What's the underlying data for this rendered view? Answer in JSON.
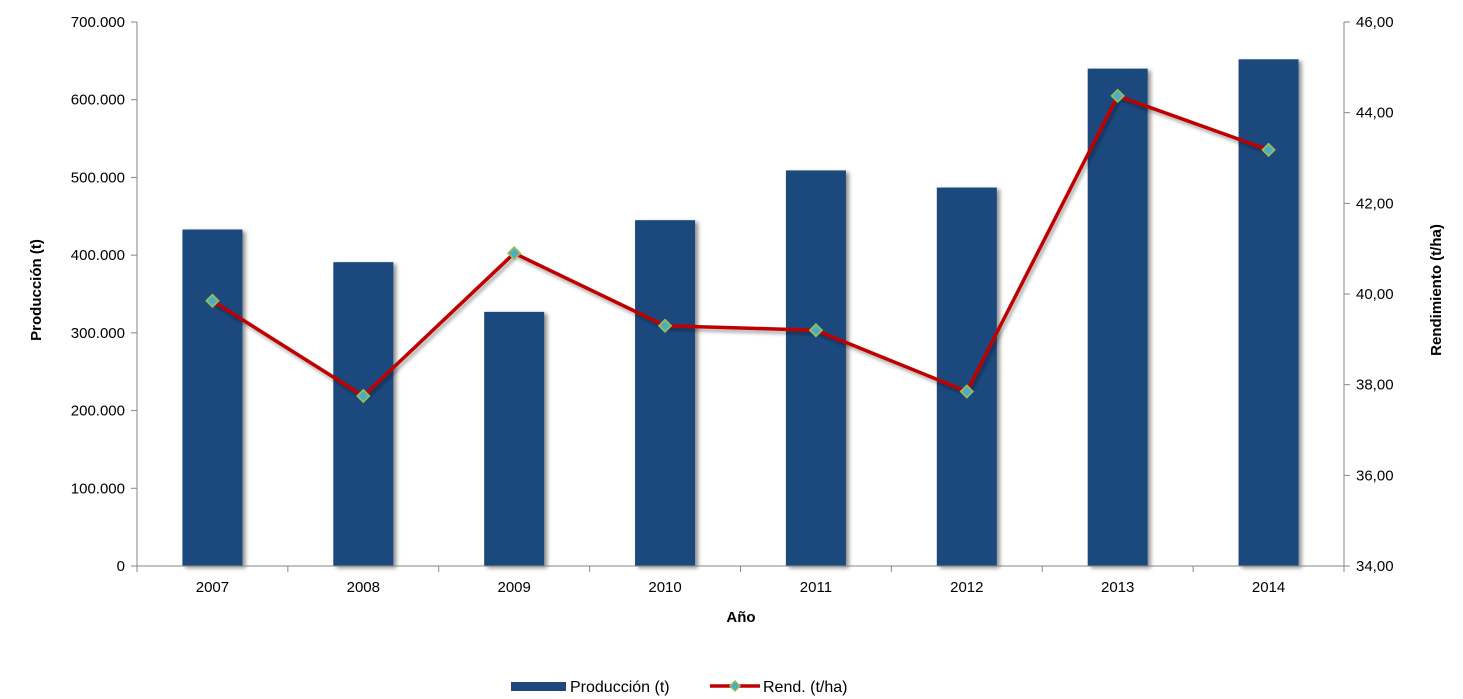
{
  "chart_data": {
    "type": "bar",
    "categories": [
      "2007",
      "2008",
      "2009",
      "2010",
      "2011",
      "2012",
      "2013",
      "2014"
    ],
    "series": [
      {
        "name": "Producción (t)",
        "type": "bar",
        "axis": "left",
        "color": "#1F497D",
        "values": [
          433000,
          391000,
          327000,
          445000,
          509000,
          487000,
          640000,
          652000
        ]
      },
      {
        "name": "Rend. (t/ha)",
        "type": "line",
        "axis": "right",
        "color": "#C00000",
        "marker_color": "#4BACC6",
        "marker_edge": "#9BBB59",
        "marker": "diamond",
        "values": [
          39.85,
          37.75,
          40.9,
          39.3,
          39.2,
          37.85,
          44.37,
          43.18
        ]
      }
    ],
    "xlabel": "Año",
    "ylabel": "Producción (t)",
    "y2label": "Rendimiento (t/ha)",
    "ylim": [
      0,
      700000
    ],
    "y2lim": [
      34,
      46
    ],
    "y_ticks": [
      "0",
      "100.000",
      "200.000",
      "300.000",
      "400.000",
      "500.000",
      "600.000",
      "700.000"
    ],
    "y2_ticks": [
      "34,00",
      "36,00",
      "38,00",
      "40,00",
      "42,00",
      "44,00",
      "46,00"
    ],
    "grid": false,
    "legend_position": "bottom"
  }
}
